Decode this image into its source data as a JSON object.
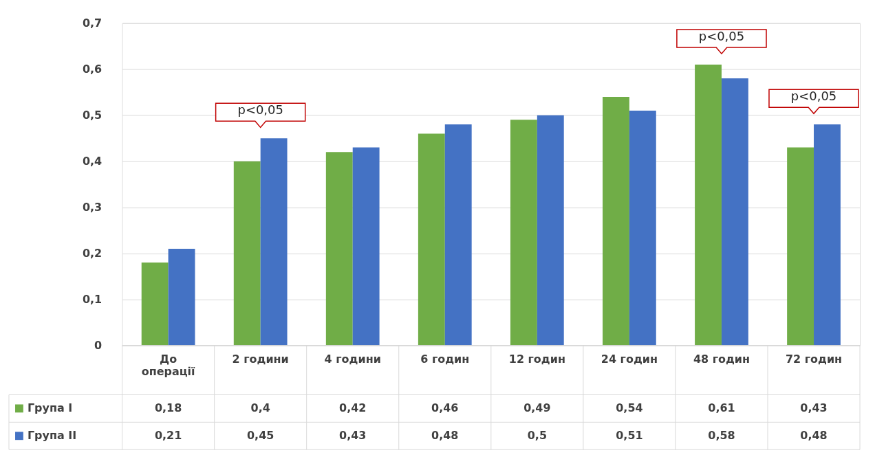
{
  "chart_data": {
    "type": "bar",
    "categories": [
      "До операції",
      "2 години",
      "4 години",
      "6 годин",
      "12 годин",
      "24 годин",
      "48 годин",
      "72 годин"
    ],
    "series": [
      {
        "name": "Група I",
        "color": "#70ad47",
        "values": [
          0.18,
          0.4,
          0.42,
          0.46,
          0.49,
          0.54,
          0.61,
          0.43
        ],
        "value_labels": [
          "0,18",
          "0,4",
          "0,42",
          "0,46",
          "0,49",
          "0,54",
          "0,61",
          "0,43"
        ]
      },
      {
        "name": "Група II",
        "color": "#4472c4",
        "values": [
          0.21,
          0.45,
          0.43,
          0.48,
          0.5,
          0.51,
          0.58,
          0.48
        ],
        "value_labels": [
          "0,21",
          "0,45",
          "0,43",
          "0,48",
          "0,5",
          "0,51",
          "0,58",
          "0,48"
        ]
      }
    ],
    "ylim": [
      0,
      0.7
    ],
    "yticks": [
      {
        "value": 0,
        "label": "0"
      },
      {
        "value": 0.1,
        "label": "0,1"
      },
      {
        "value": 0.2,
        "label": "0,2"
      },
      {
        "value": 0.3,
        "label": "0,3"
      },
      {
        "value": 0.4,
        "label": "0,4"
      },
      {
        "value": 0.5,
        "label": "0,5"
      },
      {
        "value": 0.6,
        "label": "0,6"
      },
      {
        "value": 0.7,
        "label": "0,7"
      }
    ],
    "grid": "y",
    "legend": "bottom",
    "annotations": [
      "p<0,05",
      "p<0,05",
      "p<0,05"
    ]
  }
}
